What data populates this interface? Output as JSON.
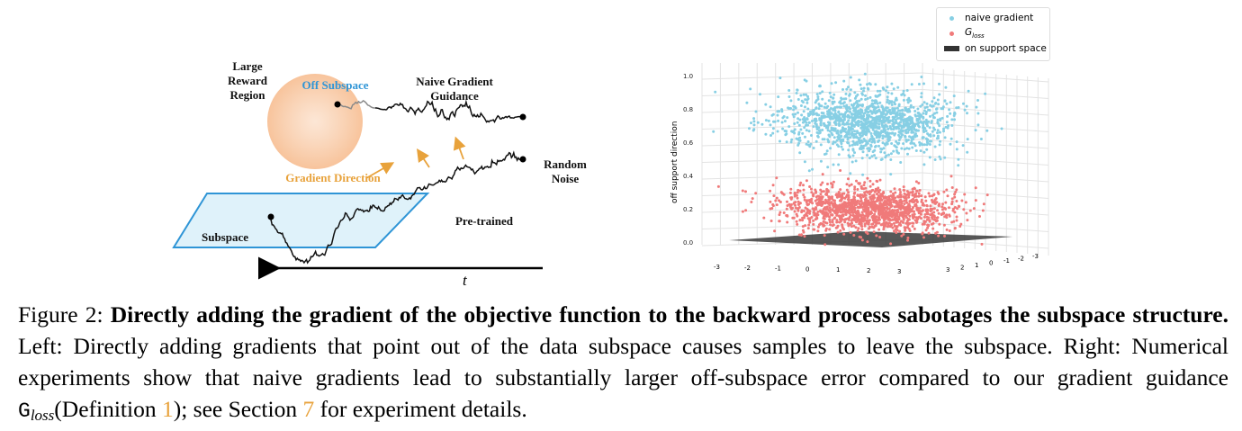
{
  "left_figure": {
    "labels": {
      "large_reward_region": [
        "Large",
        "Reward",
        "Region"
      ],
      "off_subspace": "Off Subspace",
      "naive_gradient_guidance": [
        "Naive Gradient",
        "Guidance"
      ],
      "gradient_direction": "Gradient Direction",
      "random_noise": [
        "Random",
        "Noise"
      ],
      "subspace": "Subspace",
      "pre_trained": "Pre-trained",
      "time_axis": "t"
    },
    "colors": {
      "blue": "#2f95d6",
      "orange": "#e8a23b",
      "subspace_fill": "#dff2fa"
    }
  },
  "chart_data": {
    "type": "scatter",
    "projection": "3d",
    "title": "",
    "ylabel": "off support direction",
    "yticks": [
      "0.0",
      "0.2",
      "0.4",
      "0.6",
      "0.8",
      "1.0"
    ],
    "xticks": [
      "-3",
      "-2",
      "-1",
      "0",
      "1",
      "2",
      "3"
    ],
    "zticks": [
      "3",
      "2",
      "1",
      "0",
      "-1",
      "-2",
      "-3"
    ],
    "ylim": [
      0,
      1.0
    ],
    "legend": [
      {
        "name": "naive gradient",
        "color": "#87cfe4",
        "marker": "dot"
      },
      {
        "name_main": "G",
        "name_sub": "loss",
        "color": "#f07a7a",
        "marker": "dot"
      },
      {
        "name": "on support space",
        "color": "#333333",
        "marker": "bar"
      }
    ],
    "series": [
      {
        "name": "naive gradient",
        "color": "#87cfe4",
        "off_support_mean": 0.72,
        "off_support_spread": 0.09,
        "in_plane_spread": 1.1
      },
      {
        "name": "G_loss",
        "color": "#f07a7a",
        "off_support_mean": 0.2,
        "off_support_spread": 0.06,
        "in_plane_spread": 1.1
      }
    ]
  },
  "caption": {
    "figure_label": "Figure 2:",
    "bold": "Directly adding the gradient of the objective function to the backward process sabotages the subspace structure.",
    "text_1": " Left: Directly adding gradients that point out of the data subspace causes samples to leave the subspace. Right: Numerical experiments show that naive gradients lead to substantially larger off-subspace error compared to our gradient guidance ",
    "g_main": "G",
    "g_sub": "loss",
    "text_2": "(Definition ",
    "ref_1": "1",
    "text_3": "); see Section ",
    "ref_2": "7",
    "text_4": " for experiment details."
  }
}
